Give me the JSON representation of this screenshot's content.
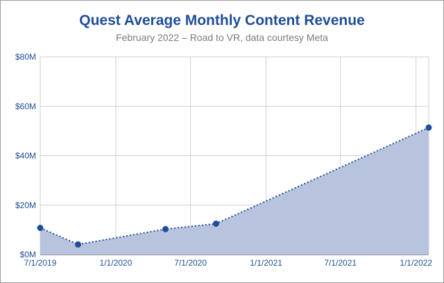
{
  "chart_data": {
    "type": "area",
    "title": "Quest Average Monthly Content Revenue",
    "subtitle": "February 2022 – Road to VR, data courtesy Meta",
    "xlabel": "",
    "ylabel": "",
    "x_ticks": [
      "7/1/2019",
      "1/1/2020",
      "7/1/2020",
      "1/1/2021",
      "7/1/2021",
      "1/1/2022"
    ],
    "y_ticks": [
      "$0M",
      "$20M",
      "$40M",
      "$60M",
      "$80M"
    ],
    "ylim": [
      0,
      80
    ],
    "xlim": [
      "2019-07-01",
      "2022-02-01"
    ],
    "grid": true,
    "series": [
      {
        "x": [
          "2019-07-01",
          "2019-10-01",
          "2020-05-01",
          "2020-09-01",
          "2022-02-01"
        ],
        "values": [
          10.8,
          4.1,
          10.3,
          12.5,
          51.4
        ]
      }
    ],
    "colors": {
      "fill": "#b8c3de",
      "line": "#1f4e98",
      "point": "#1f4e98",
      "grid": "#cfcfcf",
      "axis_text": "#1f4e98"
    }
  }
}
